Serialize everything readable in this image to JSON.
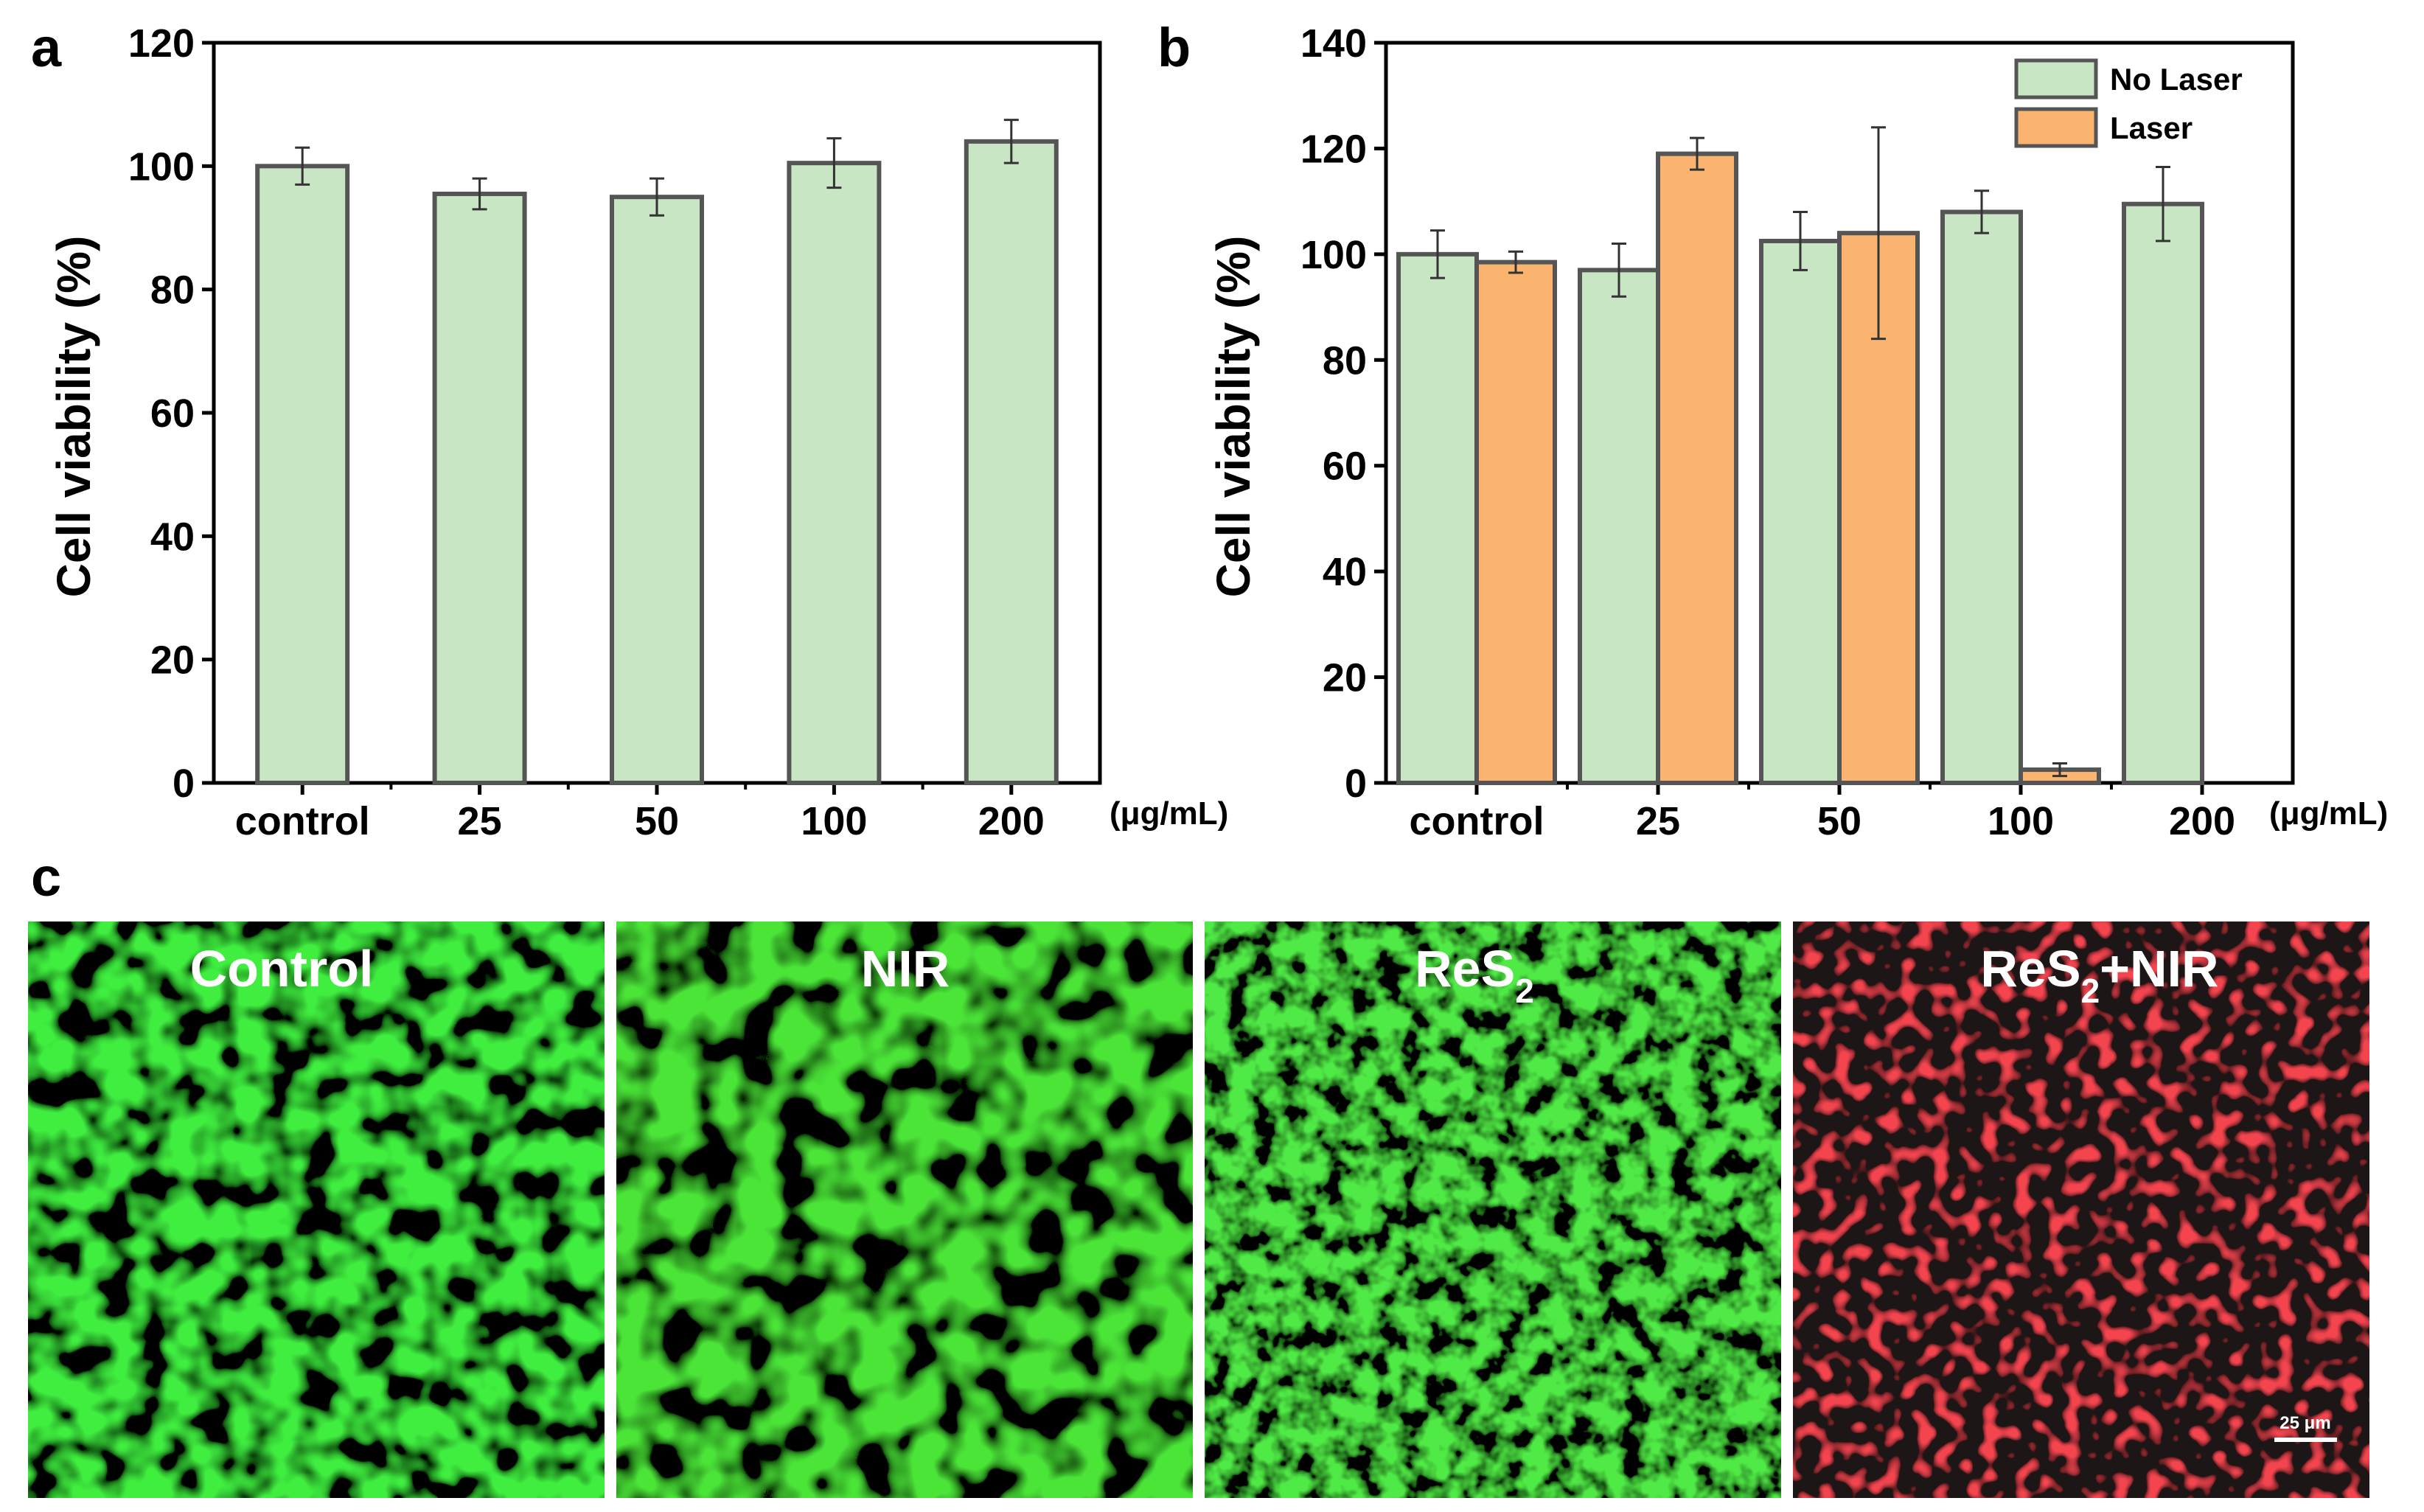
{
  "panels": {
    "a": "a",
    "b": "b",
    "c": "c"
  },
  "chart_data": [
    {
      "id": "a",
      "type": "bar",
      "categories": [
        "control",
        "25",
        "50",
        "100",
        "200"
      ],
      "ylabel": "Cell viability (%)",
      "xunit": "(μg/mL)",
      "ylim": [
        0,
        120
      ],
      "yticks": [
        "0",
        "20",
        "40",
        "60",
        "80",
        "100",
        "120"
      ],
      "series": [
        {
          "name": "No Laser",
          "color": "#c8e6c4",
          "values": [
            100,
            95.5,
            95,
            100.5,
            104
          ],
          "errors": [
            3,
            2.5,
            3,
            4,
            3.5
          ]
        }
      ]
    },
    {
      "id": "b",
      "type": "bar",
      "categories": [
        "control",
        "25",
        "50",
        "100",
        "200"
      ],
      "ylabel": "Cell viability (%)",
      "xunit": "(μg/mL)",
      "ylim": [
        0,
        140
      ],
      "yticks": [
        "0",
        "20",
        "40",
        "60",
        "80",
        "100",
        "120",
        "140"
      ],
      "legend_position": "top-right",
      "series": [
        {
          "name": "No Laser",
          "color": "#c8e6c4",
          "values": [
            100,
            97,
            102.5,
            108,
            109.5
          ],
          "errors": [
            4.5,
            5,
            5.5,
            4,
            7
          ]
        },
        {
          "name": "Laser",
          "color": "#fbb470",
          "values": [
            98.5,
            119,
            104,
            2.5,
            null
          ],
          "errors": [
            2,
            3,
            20,
            1.2,
            null
          ]
        }
      ]
    }
  ],
  "micrographs": [
    {
      "main": "Control",
      "sub": "",
      "tail": "",
      "stain": "green"
    },
    {
      "main": "NIR",
      "sub": "",
      "tail": "",
      "stain": "green"
    },
    {
      "main": "ReS",
      "sub": "2",
      "tail": "",
      "stain": "green"
    },
    {
      "main": "ReS",
      "sub": "2",
      "tail": "+NIR",
      "stain": "red"
    }
  ],
  "scale_bar": "25 μm",
  "colors": {
    "green_cells": "#22e01e",
    "red_nuclei": "#e8141c",
    "bar_outline": "#555555"
  }
}
